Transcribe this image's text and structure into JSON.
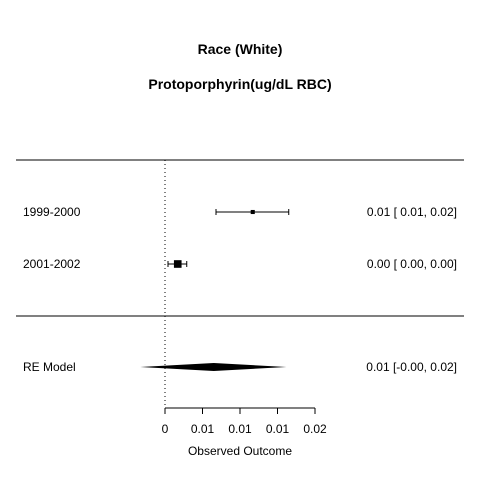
{
  "chart_data": {
    "type": "forest",
    "title": "Race (White)",
    "subtitle": "Protoporphyrin(ug/dL RBC)",
    "xlabel": "Observed Outcome",
    "xlim": [
      -0.001,
      0.02
    ],
    "reference_line": 0,
    "x_ticks": [
      {
        "value": 0,
        "label": "0"
      },
      {
        "value": 0.005,
        "label": "0.01"
      },
      {
        "value": 0.01,
        "label": "0.01"
      },
      {
        "value": 0.015,
        "label": "0.01"
      },
      {
        "value": 0.02,
        "label": "0.02"
      }
    ],
    "studies": [
      {
        "label": "1999-2000",
        "estimate": 0.0117,
        "ci_low": 0.0068,
        "ci_high": 0.0165,
        "weight": 0.12,
        "ci_text": "0.01 [ 0.01, 0.02]"
      },
      {
        "label": "2001-2002",
        "estimate": 0.0017,
        "ci_low": 0.0004,
        "ci_high": 0.0029,
        "weight": 0.88,
        "ci_text": "0.00 [ 0.00, 0.00]"
      }
    ],
    "summary": {
      "label": "RE Model",
      "estimate": 0.0065,
      "ci_low": -0.0033,
      "ci_high": 0.0162,
      "ci_text": "0.01 [-0.00, 0.02]"
    }
  }
}
